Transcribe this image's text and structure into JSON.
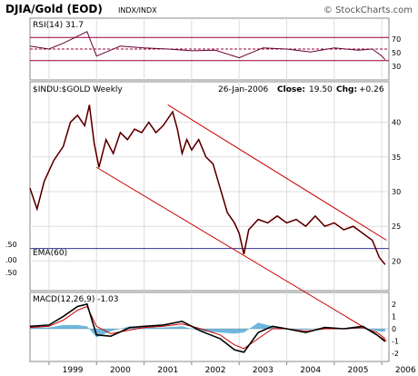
{
  "header": {
    "title": "DJIA/Gold (EOD)",
    "subtitle": "INDX/INDX",
    "watermark": "© StockCharts.com"
  },
  "rsi_panel": {
    "label": "RSI(14) 31.7",
    "ticks": [
      "70",
      "50",
      "30"
    ]
  },
  "price_panel": {
    "label": "$INDU:$GOLD Weekly",
    "date": "26-Jan-2006",
    "close_label": "Close:",
    "close_value": "19.50",
    "chg_label": "Chg:",
    "chg_value": "+0.26",
    "ema_label": "EMA(60)",
    "left_ticks": [
      ".50",
      ".00",
      ".50"
    ],
    "ticks": [
      "40",
      "35",
      "30",
      "25",
      "20"
    ]
  },
  "macd_panel": {
    "label": "MACD(12,26,9) -1.03",
    "ticks": [
      "2",
      "1",
      "0",
      "-1",
      "-2"
    ]
  },
  "xaxis": {
    "labels": [
      "1999",
      "2000",
      "2001",
      "2002",
      "2003",
      "2004",
      "2005",
      "2006"
    ]
  },
  "colors": {
    "price_line": "#000000",
    "price_highlight": "#cc0000",
    "trendline": "#cc0000",
    "ema": "#333399",
    "rsi_line": "#660033",
    "rsi_bounds": "#990033",
    "macd_line": "#000000",
    "macd_signal": "#cc0000",
    "macd_hist": "#3399cc",
    "grid": "#dddddd"
  },
  "chart_data": [
    {
      "type": "line",
      "title": "RSI(14) 31.7",
      "ylim": [
        0,
        100
      ],
      "reference_levels": [
        70,
        50,
        30
      ],
      "x": [
        1998.6,
        1999.0,
        1999.3,
        1999.6,
        1999.8,
        2000.0,
        2000.5,
        2001.0,
        2001.5,
        2002.0,
        2002.5,
        2003.0,
        2003.5,
        2004.0,
        2004.5,
        2005.0,
        2005.5,
        2005.8,
        2006.0,
        2006.07
      ],
      "series": [
        {
          "values": [
            55,
            50,
            60,
            72,
            80,
            38,
            55,
            52,
            50,
            47,
            48,
            35,
            52,
            50,
            45,
            52,
            48,
            50,
            38,
            31.7
          ]
        }
      ]
    },
    {
      "type": "line",
      "title": "$INDU:$GOLD Weekly",
      "ylim": [
        16,
        44
      ],
      "x": [
        1998.6,
        1998.75,
        1998.9,
        1999.1,
        1999.3,
        1999.45,
        1999.6,
        1999.75,
        1999.85,
        1999.95,
        2000.05,
        2000.2,
        2000.35,
        2000.5,
        2000.65,
        2000.8,
        2000.95,
        2001.1,
        2001.25,
        2001.4,
        2001.5,
        2001.6,
        2001.7,
        2001.8,
        2001.9,
        2002.0,
        2002.15,
        2002.3,
        2002.45,
        2002.6,
        2002.75,
        2002.9,
        2003.0,
        2003.1,
        2003.2,
        2003.4,
        2003.6,
        2003.8,
        2004.0,
        2004.2,
        2004.4,
        2004.6,
        2004.8,
        2005.0,
        2005.2,
        2005.4,
        2005.6,
        2005.8,
        2005.95,
        2006.07
      ],
      "series": [
        {
          "name": "$INDU:$GOLD",
          "values": [
            30.5,
            27.5,
            31.5,
            34.5,
            36.5,
            40.0,
            41.0,
            39.5,
            42.5,
            37.0,
            33.5,
            37.5,
            35.5,
            38.5,
            37.5,
            39.0,
            38.5,
            40.0,
            38.5,
            39.5,
            40.5,
            41.5,
            39.0,
            35.5,
            37.5,
            36.0,
            37.5,
            35.0,
            34.0,
            30.5,
            27.0,
            25.5,
            24.0,
            21.0,
            24.5,
            26.0,
            25.5,
            26.5,
            25.5,
            26.0,
            25.0,
            26.5,
            25.0,
            25.5,
            24.5,
            25.0,
            24.0,
            23.0,
            20.5,
            19.5
          ]
        },
        {
          "name": "EMA(60)",
          "values": [
            21.8,
            21.8,
            21.8,
            21.8,
            21.8,
            21.8,
            21.8,
            21.8,
            21.8,
            21.8,
            21.8,
            21.8,
            21.8,
            21.8,
            21.8,
            21.8,
            21.8,
            21.8,
            21.8,
            21.8,
            21.8,
            21.8,
            21.8,
            21.8,
            21.8,
            21.8,
            21.8,
            21.8,
            21.8,
            21.8,
            21.8,
            21.8,
            21.8,
            21.8,
            21.8,
            21.8,
            21.8,
            21.8,
            21.8,
            21.8,
            21.8,
            21.8,
            21.8,
            21.8,
            21.8,
            21.8,
            21.8,
            21.8,
            21.8,
            21.8
          ]
        }
      ],
      "trendlines": [
        {
          "x": [
            2000.0,
            2006.1
          ],
          "values": [
            33.5,
            8.5
          ]
        },
        {
          "x": [
            2001.5,
            2006.1
          ],
          "values": [
            42.5,
            23.0
          ]
        }
      ]
    },
    {
      "type": "line",
      "title": "MACD(12,26,9) -1.03",
      "ylim": [
        -2.5,
        2.5
      ],
      "x": [
        1998.6,
        1999.0,
        1999.3,
        1999.6,
        1999.8,
        2000.0,
        2000.3,
        2000.7,
        2001.0,
        2001.4,
        2001.8,
        2002.2,
        2002.6,
        2002.9,
        2003.1,
        2003.4,
        2003.7,
        2004.0,
        2004.4,
        2004.8,
        2005.2,
        2005.6,
        2005.9,
        2006.07
      ],
      "series": [
        {
          "name": "MACD",
          "values": [
            0.2,
            0.3,
            1.0,
            1.8,
            2.0,
            -0.5,
            -0.6,
            0.1,
            0.2,
            0.3,
            0.6,
            -0.2,
            -0.8,
            -1.7,
            -1.9,
            -0.3,
            0.2,
            0.0,
            -0.3,
            0.1,
            0.0,
            0.2,
            -0.5,
            -1.03
          ]
        },
        {
          "name": "Signal",
          "values": [
            0.1,
            0.2,
            0.7,
            1.5,
            1.8,
            0.2,
            -0.4,
            -0.1,
            0.1,
            0.2,
            0.4,
            0.0,
            -0.5,
            -1.3,
            -1.6,
            -0.8,
            0.0,
            0.0,
            -0.2,
            0.0,
            0.0,
            0.1,
            -0.3,
            -0.8
          ]
        },
        {
          "name": "Histogram",
          "values": [
            0.1,
            0.1,
            0.3,
            0.3,
            0.2,
            -0.7,
            -0.2,
            0.2,
            0.1,
            0.1,
            0.2,
            -0.2,
            -0.3,
            -0.4,
            -0.3,
            0.5,
            0.2,
            0.0,
            -0.1,
            0.1,
            0.0,
            0.1,
            -0.2,
            -0.23
          ]
        }
      ]
    }
  ]
}
